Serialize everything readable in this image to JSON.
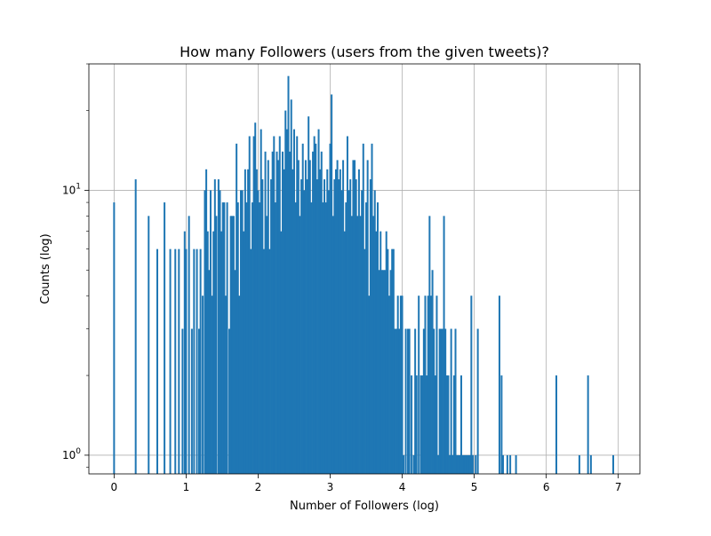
{
  "chart_data": {
    "type": "bar",
    "title": "How many Followers (users from the given tweets)?",
    "xlabel": "Number of Followers (log)",
    "ylabel": "Counts (log)",
    "xlim": [
      -0.35,
      7.3
    ],
    "ylim": [
      0.85,
      30
    ],
    "yscale": "log",
    "grid": true,
    "bar_color": "#1f77b4",
    "xticks": [
      {
        "value": 0,
        "label": "0"
      },
      {
        "value": 1,
        "label": "1"
      },
      {
        "value": 2,
        "label": "2"
      },
      {
        "value": 3,
        "label": "3"
      },
      {
        "value": 4,
        "label": "4"
      },
      {
        "value": 5,
        "label": "5"
      },
      {
        "value": 6,
        "label": "6"
      },
      {
        "value": 7,
        "label": "7"
      }
    ],
    "yticks_major": [
      {
        "value": 1,
        "base": "10",
        "exp": "0"
      },
      {
        "value": 10,
        "base": "10",
        "exp": "1"
      }
    ],
    "bars": [
      [
        0.0,
        9
      ],
      [
        0.3,
        11
      ],
      [
        0.48,
        8
      ],
      [
        0.6,
        6
      ],
      [
        0.7,
        9
      ],
      [
        0.78,
        6
      ],
      [
        0.85,
        6
      ],
      [
        0.9,
        6
      ],
      [
        0.95,
        3
      ],
      [
        0.98,
        7
      ],
      [
        1.0,
        6
      ],
      [
        1.04,
        8
      ],
      [
        1.08,
        3
      ],
      [
        1.11,
        6
      ],
      [
        1.15,
        6
      ],
      [
        1.18,
        3
      ],
      [
        1.2,
        6
      ],
      [
        1.23,
        4
      ],
      [
        1.26,
        10
      ],
      [
        1.28,
        12
      ],
      [
        1.3,
        7
      ],
      [
        1.32,
        5
      ],
      [
        1.34,
        10
      ],
      [
        1.36,
        4
      ],
      [
        1.38,
        7
      ],
      [
        1.4,
        11
      ],
      [
        1.42,
        8
      ],
      [
        1.45,
        11
      ],
      [
        1.47,
        10
      ],
      [
        1.49,
        7
      ],
      [
        1.51,
        9
      ],
      [
        1.53,
        9
      ],
      [
        1.55,
        4
      ],
      [
        1.57,
        9
      ],
      [
        1.6,
        3
      ],
      [
        1.62,
        8
      ],
      [
        1.64,
        8
      ],
      [
        1.66,
        8
      ],
      [
        1.68,
        5
      ],
      [
        1.7,
        15
      ],
      [
        1.72,
        9
      ],
      [
        1.74,
        4
      ],
      [
        1.76,
        10
      ],
      [
        1.78,
        10
      ],
      [
        1.8,
        7
      ],
      [
        1.82,
        12
      ],
      [
        1.84,
        9
      ],
      [
        1.86,
        12
      ],
      [
        1.88,
        16
      ],
      [
        1.9,
        6
      ],
      [
        1.92,
        9
      ],
      [
        1.94,
        16
      ],
      [
        1.96,
        18
      ],
      [
        1.98,
        12
      ],
      [
        2.0,
        10
      ],
      [
        2.02,
        9
      ],
      [
        2.04,
        17
      ],
      [
        2.06,
        11
      ],
      [
        2.08,
        6
      ],
      [
        2.1,
        14
      ],
      [
        2.12,
        8
      ],
      [
        2.14,
        13
      ],
      [
        2.16,
        6
      ],
      [
        2.18,
        11
      ],
      [
        2.2,
        14
      ],
      [
        2.22,
        16
      ],
      [
        2.24,
        9
      ],
      [
        2.26,
        14
      ],
      [
        2.28,
        13
      ],
      [
        2.3,
        16
      ],
      [
        2.32,
        7
      ],
      [
        2.34,
        14
      ],
      [
        2.36,
        12
      ],
      [
        2.38,
        20
      ],
      [
        2.4,
        17
      ],
      [
        2.42,
        27
      ],
      [
        2.44,
        14
      ],
      [
        2.46,
        22
      ],
      [
        2.48,
        12
      ],
      [
        2.5,
        17
      ],
      [
        2.52,
        9
      ],
      [
        2.54,
        16
      ],
      [
        2.56,
        13
      ],
      [
        2.58,
        8
      ],
      [
        2.6,
        11
      ],
      [
        2.62,
        15
      ],
      [
        2.64,
        10
      ],
      [
        2.66,
        13
      ],
      [
        2.68,
        11
      ],
      [
        2.7,
        19
      ],
      [
        2.72,
        13
      ],
      [
        2.74,
        9
      ],
      [
        2.76,
        14
      ],
      [
        2.78,
        16
      ],
      [
        2.8,
        15
      ],
      [
        2.82,
        11
      ],
      [
        2.84,
        17
      ],
      [
        2.86,
        12
      ],
      [
        2.88,
        14
      ],
      [
        2.9,
        9
      ],
      [
        2.92,
        11
      ],
      [
        2.94,
        9
      ],
      [
        2.96,
        12
      ],
      [
        2.98,
        10
      ],
      [
        3.0,
        15
      ],
      [
        3.02,
        23
      ],
      [
        3.04,
        8
      ],
      [
        3.06,
        11
      ],
      [
        3.08,
        12
      ],
      [
        3.1,
        13
      ],
      [
        3.12,
        11
      ],
      [
        3.14,
        12
      ],
      [
        3.16,
        10
      ],
      [
        3.18,
        13
      ],
      [
        3.2,
        7
      ],
      [
        3.22,
        9
      ],
      [
        3.24,
        16
      ],
      [
        3.26,
        10
      ],
      [
        3.28,
        11
      ],
      [
        3.3,
        8
      ],
      [
        3.32,
        13
      ],
      [
        3.34,
        13
      ],
      [
        3.36,
        11
      ],
      [
        3.38,
        8
      ],
      [
        3.4,
        12
      ],
      [
        3.42,
        8
      ],
      [
        3.44,
        10
      ],
      [
        3.46,
        15
      ],
      [
        3.48,
        6
      ],
      [
        3.5,
        9
      ],
      [
        3.52,
        13
      ],
      [
        3.54,
        4
      ],
      [
        3.56,
        11
      ],
      [
        3.58,
        15
      ],
      [
        3.6,
        8
      ],
      [
        3.62,
        10
      ],
      [
        3.64,
        7
      ],
      [
        3.66,
        9
      ],
      [
        3.68,
        5
      ],
      [
        3.7,
        7
      ],
      [
        3.72,
        5
      ],
      [
        3.74,
        5
      ],
      [
        3.76,
        5
      ],
      [
        3.78,
        7
      ],
      [
        3.8,
        6
      ],
      [
        3.82,
        4
      ],
      [
        3.84,
        5
      ],
      [
        3.86,
        6
      ],
      [
        3.88,
        6
      ],
      [
        3.9,
        3
      ],
      [
        3.92,
        3
      ],
      [
        3.94,
        4
      ],
      [
        3.96,
        3
      ],
      [
        3.98,
        4
      ],
      [
        4.0,
        4
      ],
      [
        4.02,
        1
      ],
      [
        4.05,
        3
      ],
      [
        4.08,
        3
      ],
      [
        4.1,
        3
      ],
      [
        4.13,
        2
      ],
      [
        4.16,
        1
      ],
      [
        4.18,
        3
      ],
      [
        4.2,
        2
      ],
      [
        4.23,
        4
      ],
      [
        4.26,
        2
      ],
      [
        4.28,
        2
      ],
      [
        4.3,
        3
      ],
      [
        4.32,
        4
      ],
      [
        4.34,
        2
      ],
      [
        4.36,
        4
      ],
      [
        4.38,
        8
      ],
      [
        4.4,
        4
      ],
      [
        4.42,
        5
      ],
      [
        4.44,
        3
      ],
      [
        4.46,
        2
      ],
      [
        4.48,
        4
      ],
      [
        4.5,
        1
      ],
      [
        4.52,
        3
      ],
      [
        4.54,
        3
      ],
      [
        4.56,
        3
      ],
      [
        4.58,
        8
      ],
      [
        4.6,
        3
      ],
      [
        4.62,
        2
      ],
      [
        4.64,
        2
      ],
      [
        4.66,
        1
      ],
      [
        4.68,
        3
      ],
      [
        4.7,
        1
      ],
      [
        4.72,
        2
      ],
      [
        4.74,
        3
      ],
      [
        4.76,
        1
      ],
      [
        4.78,
        1
      ],
      [
        4.8,
        1
      ],
      [
        4.82,
        2
      ],
      [
        4.84,
        1
      ],
      [
        4.86,
        1
      ],
      [
        4.88,
        1
      ],
      [
        4.9,
        1
      ],
      [
        4.92,
        1
      ],
      [
        4.94,
        1
      ],
      [
        4.96,
        4
      ],
      [
        4.98,
        1
      ],
      [
        5.02,
        1
      ],
      [
        5.05,
        3
      ],
      [
        5.35,
        4
      ],
      [
        5.38,
        2
      ],
      [
        5.4,
        1
      ],
      [
        5.46,
        1
      ],
      [
        5.5,
        1
      ],
      [
        5.58,
        1
      ],
      [
        6.14,
        2
      ],
      [
        6.46,
        1
      ],
      [
        6.58,
        2
      ],
      [
        6.62,
        1
      ],
      [
        6.93,
        1
      ]
    ]
  }
}
